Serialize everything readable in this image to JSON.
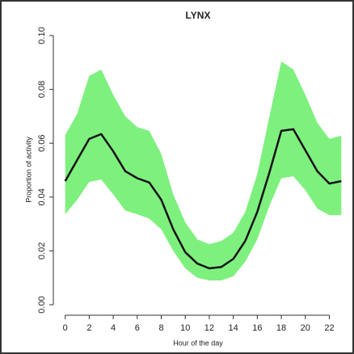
{
  "chart_data": {
    "type": "line",
    "title": "LYNX",
    "xlabel": "Hour of the day",
    "ylabel": "Proportion of activity",
    "x": [
      0,
      1,
      2,
      3,
      4,
      5,
      6,
      7,
      8,
      9,
      10,
      11,
      12,
      13,
      14,
      15,
      16,
      17,
      18,
      19,
      20,
      21,
      22,
      23
    ],
    "values": [
      0.0459,
      0.0538,
      0.0616,
      0.0634,
      0.057,
      0.0496,
      0.047,
      0.0454,
      0.039,
      0.028,
      0.0195,
      0.0153,
      0.0135,
      0.014,
      0.017,
      0.0237,
      0.0345,
      0.049,
      0.0646,
      0.0652,
      0.0574,
      0.0496,
      0.045,
      0.0459
    ],
    "upper": [
      0.063,
      0.071,
      0.085,
      0.0874,
      0.078,
      0.07,
      0.066,
      0.0646,
      0.056,
      0.041,
      0.0306,
      0.0243,
      0.0225,
      0.0237,
      0.0267,
      0.0345,
      0.0486,
      0.0697,
      0.0904,
      0.0874,
      0.078,
      0.0676,
      0.0616,
      0.0628
    ],
    "lower": [
      0.0336,
      0.039,
      0.0456,
      0.0465,
      0.041,
      0.035,
      0.0336,
      0.032,
      0.028,
      0.02,
      0.0135,
      0.01,
      0.009,
      0.009,
      0.0105,
      0.016,
      0.0243,
      0.0366,
      0.047,
      0.0477,
      0.0426,
      0.0357,
      0.0333,
      0.0333
    ],
    "color": "#111111",
    "band_color": "#7ef07e",
    "xlim": [
      -0.92,
      23.92
    ],
    "xticks": [
      0,
      2,
      4,
      6,
      8,
      10,
      12,
      14,
      16,
      18,
      20,
      22
    ],
    "ylim": [
      0,
      0.1
    ],
    "yticks": [
      {
        "value": 0,
        "label": "0.00"
      },
      {
        "value": 0.02,
        "label": "0.02"
      },
      {
        "value": 0.04,
        "label": "0.04"
      },
      {
        "value": 0.06,
        "label": "0.06"
      },
      {
        "value": 0.08,
        "label": "0.08"
      },
      {
        "value": 0.1,
        "label": "0.10"
      }
    ]
  }
}
